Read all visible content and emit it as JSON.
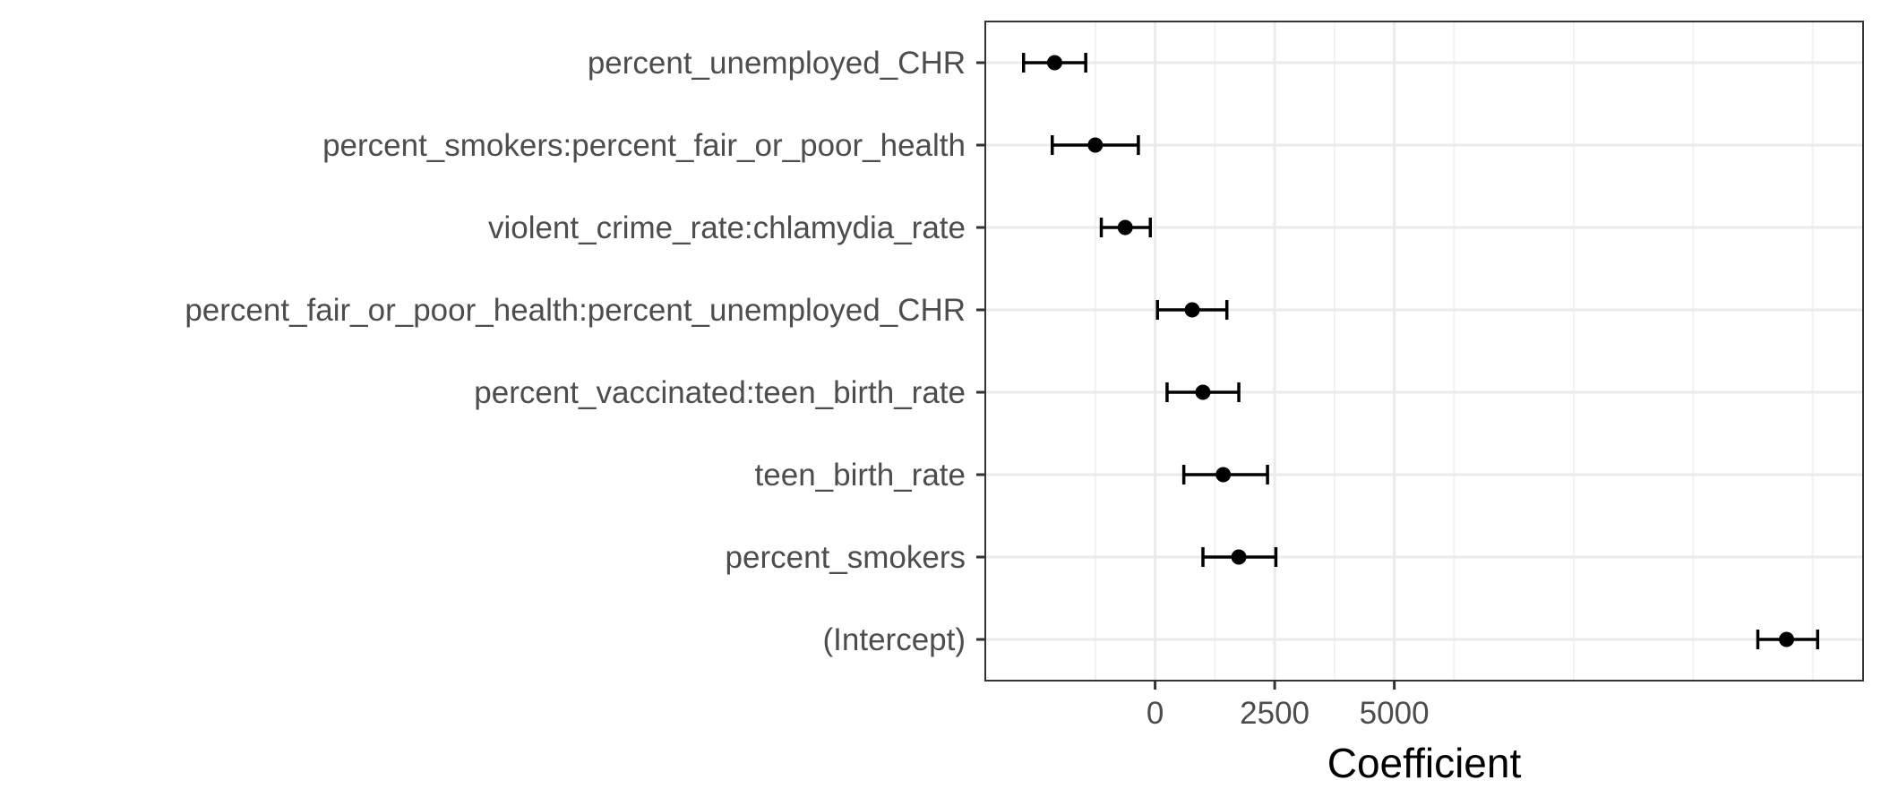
{
  "chart_data": {
    "type": "scatter",
    "subtype": "coefficient-errorbar",
    "title": "",
    "xlabel": "Coefficient",
    "ylabel": "",
    "xlim": [
      -3550,
      14800
    ],
    "x_ticks": [
      0,
      2500,
      5000
    ],
    "x_tick_labels": [
      "0",
      "2500",
      "5000"
    ],
    "grid": true,
    "legend": "none",
    "categories": [
      "percent_unemployed_CHR",
      "percent_smokers:percent_fair_or_poor_health",
      "violent_crime_rate:chlamydia_rate",
      "percent_fair_or_poor_health:percent_unemployed_CHR",
      "percent_vaccinated:teen_birth_rate",
      "teen_birth_rate",
      "percent_smokers",
      "(Intercept)"
    ],
    "estimates": [
      -2100,
      -1250,
      -625,
      775,
      1000,
      1425,
      1750,
      13200
    ],
    "lower": [
      -2750,
      -2150,
      -1125,
      50,
      250,
      600,
      1000,
      12600
    ],
    "upper": [
      -1450,
      -350,
      -100,
      1500,
      1750,
      2350,
      2525,
      13850
    ],
    "colors": {
      "point": "#000000",
      "errorbar": "#000000",
      "grid_major": "#ebebeb",
      "grid_minor": "#f2f2f2",
      "panel_border": "#333333",
      "tick_text": "#4d4d4d"
    }
  }
}
